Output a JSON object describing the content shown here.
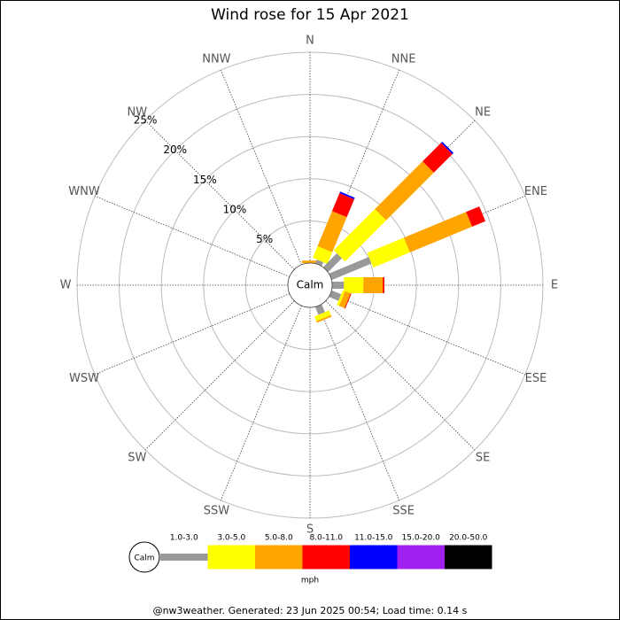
{
  "chart_data": {
    "type": "windrose",
    "title": "Wind rose for 15 Apr 2021",
    "directions": [
      "N",
      "NNE",
      "NE",
      "ENE",
      "E",
      "ESE",
      "SE",
      "SSE",
      "S",
      "SSW",
      "SW",
      "WSW",
      "W",
      "WNW",
      "NW",
      "NNW"
    ],
    "center_label": "Calm",
    "rlim": [
      0,
      25
    ],
    "rticks": [
      {
        "value": 5,
        "label": "5%"
      },
      {
        "value": 10,
        "label": "10%"
      },
      {
        "value": 15,
        "label": "15%"
      },
      {
        "value": 20,
        "label": "20%"
      },
      {
        "value": 25,
        "label": "25%"
      }
    ],
    "series": [
      {
        "name": "1.0-3.0",
        "color": "#999999",
        "values": [
          0,
          0.5,
          2.3,
          5.1,
          1.4,
          1.2,
          0,
          1.0,
          0,
          0,
          0,
          0,
          0,
          0,
          0,
          0
        ]
      },
      {
        "name": "3.0-5.0",
        "color": "#ffff00",
        "values": [
          0,
          1.5,
          6.9,
          4.7,
          2.3,
          0.3,
          0,
          0.6,
          0,
          0,
          0,
          0,
          0,
          0,
          0,
          0
        ]
      },
      {
        "name": "5.0-8.0",
        "color": "#ffa500",
        "values": [
          0.3,
          4.5,
          8.0,
          8.0,
          2.3,
          0.7,
          0,
          0.2,
          0,
          0,
          0,
          0,
          0,
          0,
          0,
          0
        ]
      },
      {
        "name": "8.0-11.0",
        "color": "#ff0000",
        "values": [
          0,
          2.3,
          3.1,
          1.7,
          0.2,
          0.1,
          0,
          0,
          0,
          0,
          0,
          0,
          0,
          0,
          0,
          0
        ]
      },
      {
        "name": "11.0-15.0",
        "color": "#0000ff",
        "values": [
          0,
          0.2,
          0.2,
          0,
          0,
          0,
          0,
          0,
          0,
          0,
          0,
          0,
          0,
          0,
          0,
          0
        ]
      },
      {
        "name": "15.0-20.0",
        "color": "#a020f0",
        "values": [
          0,
          0,
          0,
          0,
          0,
          0,
          0,
          0,
          0,
          0,
          0,
          0,
          0,
          0,
          0,
          0
        ]
      },
      {
        "name": "20.0-50.0",
        "color": "#000000",
        "values": [
          0,
          0,
          0,
          0,
          0,
          0,
          0,
          0,
          0,
          0,
          0,
          0,
          0,
          0,
          0,
          0
        ]
      }
    ],
    "unit": "mph",
    "footer": "@nw3weather. Generated: 23 Jun 2025 00:54; Load time: 0.14 s"
  }
}
